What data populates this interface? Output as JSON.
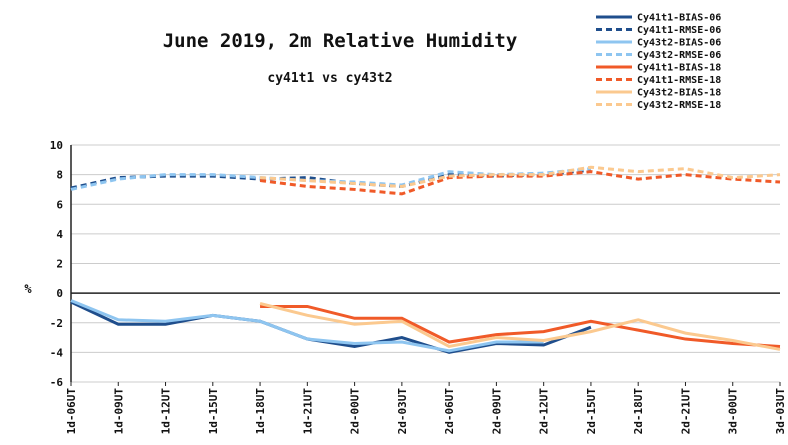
{
  "chart_data": {
    "type": "line",
    "title": "June 2019, 2m Relative Humidity",
    "subtitle": "cy41t1 vs cy43t2",
    "y_label": "%",
    "categories": [
      "1d-06UT",
      "1d-09UT",
      "1d-12UT",
      "1d-15UT",
      "1d-18UT",
      "1d-21UT",
      "2d-00UT",
      "2d-03UT",
      "2d-06UT",
      "2d-09UT",
      "2d-12UT",
      "2d-15UT",
      "2d-18UT",
      "2d-21UT",
      "3d-00UT",
      "3d-03UT"
    ],
    "series": [
      {
        "name": "Cy41t1-BIAS-06",
        "color": "#1f4e8c",
        "dashed": false,
        "values": [
          -0.6,
          -2.1,
          -2.1,
          -1.5,
          -1.9,
          -3.1,
          -3.6,
          -3.0,
          -4.0,
          -3.4,
          -3.5,
          -2.3,
          null,
          null,
          null,
          null
        ]
      },
      {
        "name": "Cy41t1-RMSE-06",
        "color": "#1f4e8c",
        "dashed": true,
        "values": [
          7.1,
          7.8,
          7.9,
          7.9,
          7.7,
          7.8,
          7.4,
          7.2,
          8.0,
          7.9,
          8.0,
          8.3,
          null,
          null,
          null,
          null
        ]
      },
      {
        "name": "Cy43t2-BIAS-06",
        "color": "#8ec5f0",
        "dashed": false,
        "values": [
          -0.5,
          -1.8,
          -1.9,
          -1.5,
          -1.9,
          -3.1,
          -3.4,
          -3.3,
          -3.9,
          -3.3,
          -3.3,
          null,
          null,
          null,
          null,
          null
        ]
      },
      {
        "name": "Cy43t2-RMSE-06",
        "color": "#8ec5f0",
        "dashed": true,
        "values": [
          7.0,
          7.7,
          8.0,
          8.0,
          7.8,
          7.6,
          7.5,
          7.3,
          8.2,
          8.0,
          8.1,
          8.4,
          null,
          null,
          null,
          null
        ]
      },
      {
        "name": "Cy41t1-BIAS-18",
        "color": "#f05a28",
        "dashed": false,
        "values": [
          null,
          null,
          null,
          null,
          -0.9,
          -0.9,
          -1.7,
          -1.7,
          -3.3,
          -2.8,
          -2.6,
          -1.9,
          -2.5,
          -3.1,
          -3.4,
          -3.6
        ]
      },
      {
        "name": "Cy41t1-RMSE-18",
        "color": "#f05a28",
        "dashed": true,
        "values": [
          null,
          null,
          null,
          null,
          7.6,
          7.2,
          7.0,
          6.7,
          7.8,
          7.9,
          7.9,
          8.2,
          7.7,
          8.0,
          7.7,
          7.5
        ]
      },
      {
        "name": "Cy43t2-BIAS-18",
        "color": "#fbc98f",
        "dashed": false,
        "values": [
          null,
          null,
          null,
          null,
          -0.7,
          -1.5,
          -2.1,
          -1.9,
          -3.6,
          -3.0,
          -3.2,
          -2.6,
          -1.8,
          -2.7,
          -3.2,
          -3.8
        ]
      },
      {
        "name": "Cy43t2-RMSE-18",
        "color": "#fbc98f",
        "dashed": true,
        "values": [
          null,
          null,
          null,
          null,
          7.8,
          7.6,
          7.4,
          7.2,
          7.9,
          8.0,
          8.0,
          8.5,
          8.2,
          8.4,
          7.8,
          8.0
        ]
      }
    ],
    "ylim": [
      -6,
      10
    ],
    "yticks": [
      -6,
      -4,
      -2,
      0,
      2,
      4,
      6,
      8,
      10
    ],
    "grid": true
  }
}
